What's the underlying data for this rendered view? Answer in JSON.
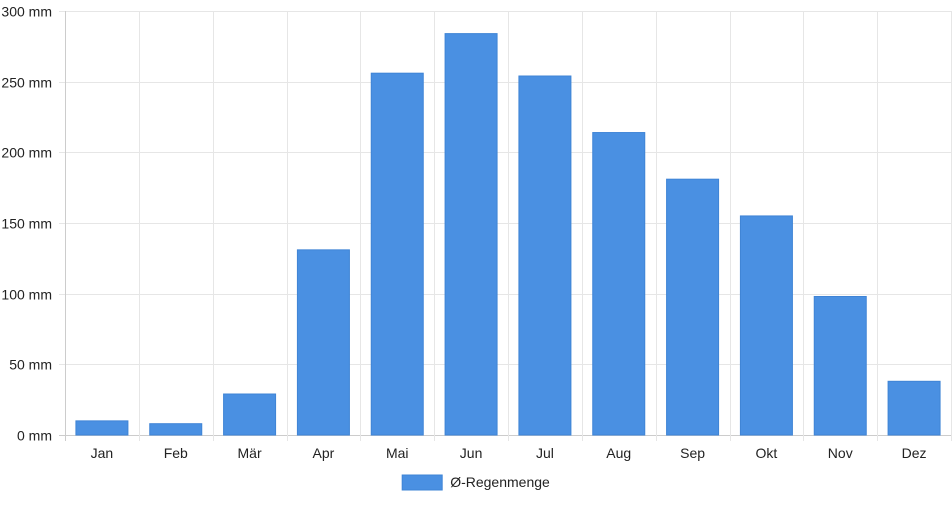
{
  "chart_data": {
    "type": "bar",
    "categories": [
      "Jan",
      "Feb",
      "Mär",
      "Apr",
      "Mai",
      "Jun",
      "Jul",
      "Aug",
      "Sep",
      "Okt",
      "Nov",
      "Dez"
    ],
    "series": [
      {
        "name": "Ø-Regenmenge",
        "values": [
          10,
          8,
          29,
          131,
          256,
          284,
          254,
          214,
          181,
          155,
          98,
          38
        ],
        "color": "#4a90e2"
      }
    ],
    "ylim": [
      0,
      300
    ],
    "yticks": [
      0,
      50,
      100,
      150,
      200,
      250,
      300
    ],
    "y_unit": "mm",
    "grid": true,
    "legend_position": "bottom-center"
  }
}
